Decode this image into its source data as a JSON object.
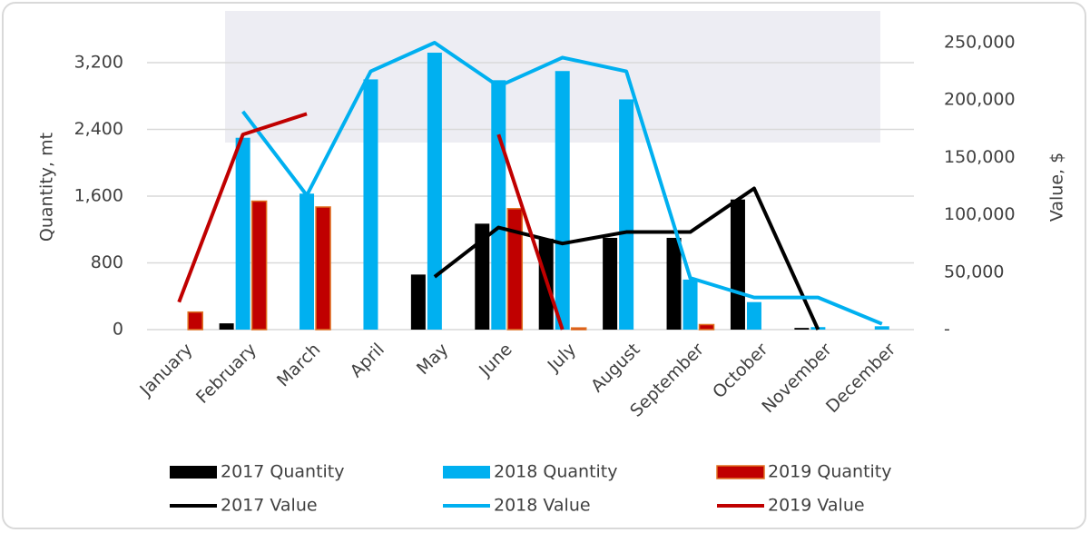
{
  "chart_data": {
    "type": "bar",
    "y_label": "Quantity, mt",
    "y2_label": "Value, $",
    "categories": [
      "January",
      "February",
      "March",
      "April",
      "May",
      "June",
      "July",
      "August",
      "September",
      "October",
      "November",
      "December"
    ],
    "ylim": [
      0,
      3440
    ],
    "yticks": [
      0,
      800,
      {
        "value": 1600,
        "label": "1,600"
      },
      {
        "value": 2400,
        "label": "2,400"
      },
      {
        "value": 3200,
        "label": "3,200"
      }
    ],
    "y2lim": [
      0,
      250000
    ],
    "y2ticks": [
      {
        "value": 0,
        "label": "-"
      },
      {
        "value": 50000,
        "label": "50,000"
      },
      {
        "value": 100000,
        "label": "100,000"
      },
      {
        "value": 150000,
        "label": "150,000"
      },
      {
        "value": 200000,
        "label": "200,000"
      },
      {
        "value": 250000,
        "label": "250,000"
      }
    ],
    "grid": true,
    "series": [
      {
        "name": "2017 Quantity",
        "type": "bar",
        "color": "#000000",
        "values": [
          0,
          75,
          0,
          0,
          660,
          1270,
          1090,
          1100,
          1100,
          1560,
          20,
          0
        ]
      },
      {
        "name": "2018 Quantity",
        "type": "bar",
        "color": "#00b0f0",
        "values": [
          0,
          2300,
          1630,
          3000,
          3320,
          2990,
          3100,
          2760,
          600,
          330,
          30,
          40
        ]
      },
      {
        "name": "2019 Quantity",
        "type": "bar",
        "color": "#c00000",
        "edge": "#e07020",
        "values": [
          210,
          1540,
          1470,
          0,
          0,
          1450,
          20,
          0,
          60,
          null,
          null,
          null
        ]
      },
      {
        "name": "2017 Value",
        "type": "line",
        "axis": "y2",
        "color": "#000000",
        "values": [
          null,
          null,
          null,
          null,
          46000,
          89000,
          75000,
          85000,
          85000,
          123000,
          0,
          null
        ]
      },
      {
        "name": "2018 Value",
        "type": "line",
        "axis": "y2",
        "color": "#00b0f0",
        "values": [
          null,
          190000,
          117000,
          225000,
          250000,
          212000,
          237000,
          225000,
          45000,
          28000,
          28000,
          5000
        ]
      },
      {
        "name": "2019 Value",
        "type": "line",
        "axis": "y2",
        "color": "#c00000",
        "values": [
          24000,
          170000,
          188000,
          null,
          null,
          170000,
          0,
          null,
          null,
          null,
          null,
          null
        ]
      }
    ]
  }
}
